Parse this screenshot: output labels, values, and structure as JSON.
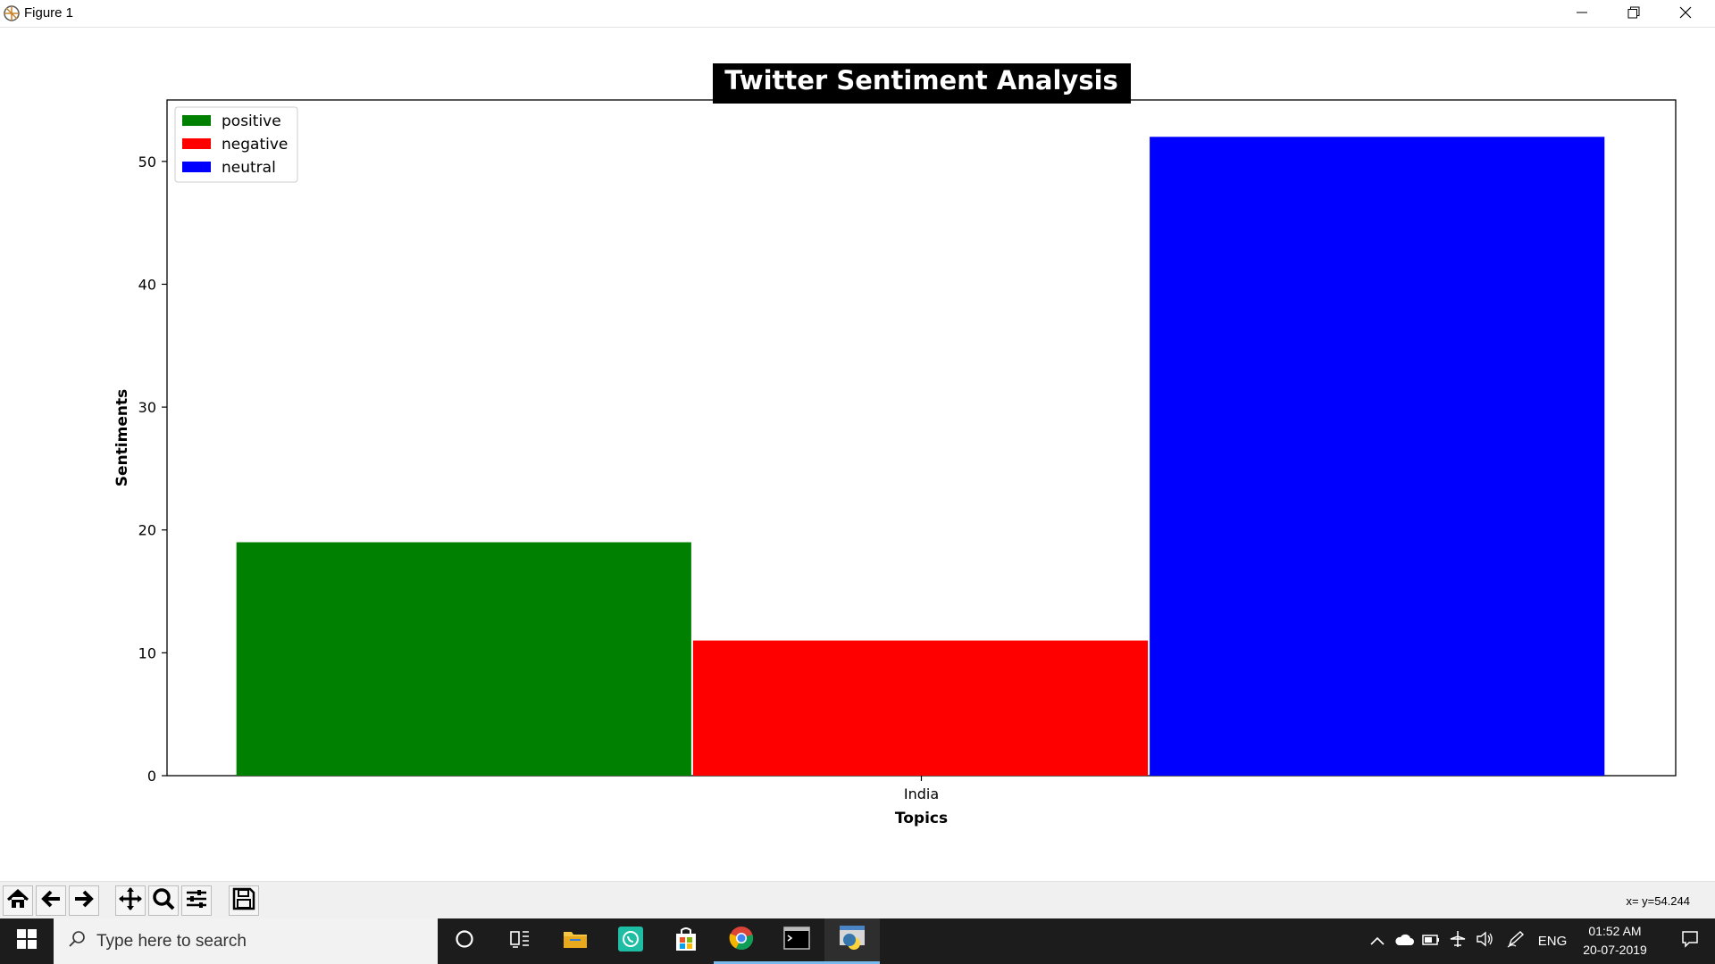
{
  "window": {
    "title": "Figure 1",
    "controls": [
      "minimize-icon",
      "restore-icon",
      "close-icon"
    ]
  },
  "chart_data": {
    "type": "bar",
    "title": "Twitter Sentiment Analysis",
    "xlabel": "Topics",
    "ylabel": "Sentiments",
    "categories": [
      "India"
    ],
    "series": [
      {
        "name": "positive",
        "values": [
          19
        ],
        "color": "#008000"
      },
      {
        "name": "negative",
        "values": [
          11
        ],
        "color": "#ff0000"
      },
      {
        "name": "neutral",
        "values": [
          52
        ],
        "color": "#0000ff"
      }
    ],
    "ylim": [
      0,
      55
    ],
    "yticks": [
      0,
      10,
      20,
      30,
      40,
      50
    ],
    "legend": "top-left",
    "grid": false
  },
  "toolbar": {
    "buttons": [
      "home-icon",
      "back-icon",
      "forward-icon",
      "pan-icon",
      "zoom-icon",
      "configure-icon",
      "save-icon"
    ],
    "coords": "x= y=54.244"
  },
  "taskbar": {
    "search_placeholder": "Type here to search",
    "language": "ENG",
    "time": "01:52 AM",
    "date": "20-07-2019"
  }
}
